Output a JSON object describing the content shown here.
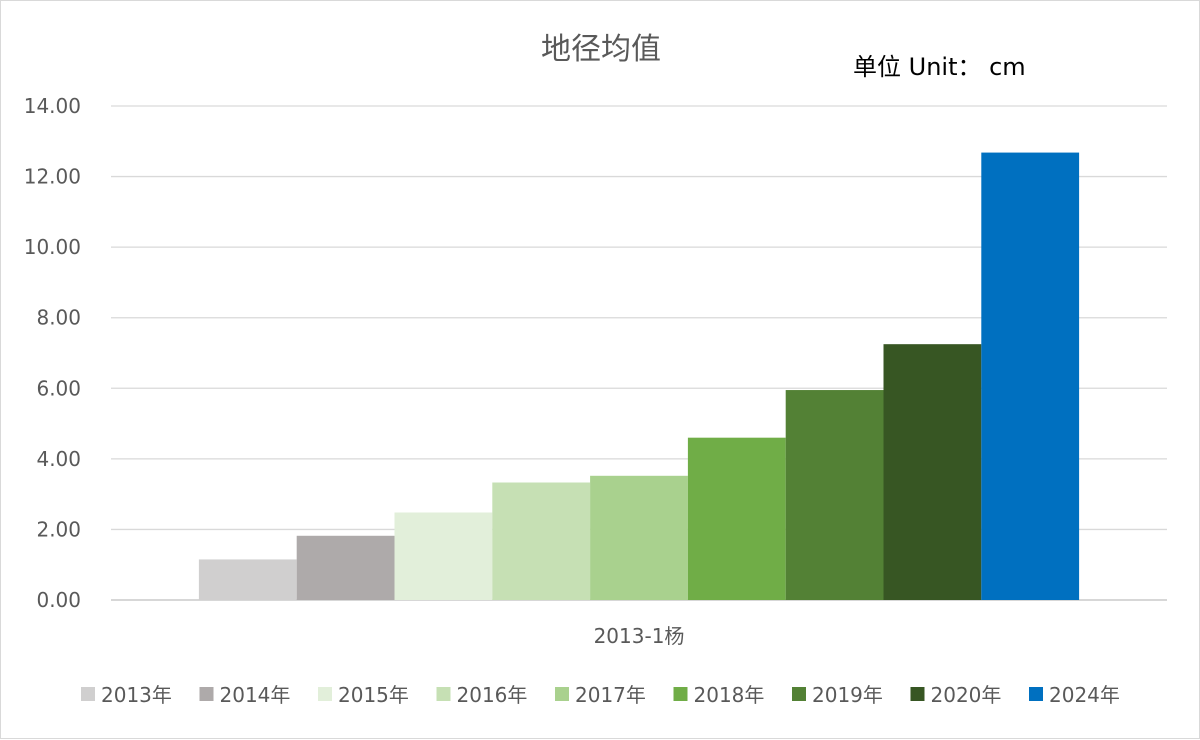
{
  "chart_data": {
    "type": "bar",
    "title": "地径均值",
    "unit_label": "单位 Unit： cm",
    "categories": [
      "2013-1杨"
    ],
    "ylim": [
      0,
      14
    ],
    "y_ticks": [
      "0.00",
      "2.00",
      "4.00",
      "6.00",
      "8.00",
      "10.00",
      "12.00",
      "14.00"
    ],
    "grid": true,
    "legend_position": "bottom",
    "series": [
      {
        "name": "2013年",
        "values": [
          1.15
        ],
        "color": "#d0cfcf"
      },
      {
        "name": "2014年",
        "values": [
          1.82
        ],
        "color": "#aeaaaa"
      },
      {
        "name": "2015年",
        "values": [
          2.48
        ],
        "color": "#e2efda"
      },
      {
        "name": "2016年",
        "values": [
          3.33
        ],
        "color": "#c6e0b4"
      },
      {
        "name": "2017年",
        "values": [
          3.52
        ],
        "color": "#a9d18e"
      },
      {
        "name": "2018年",
        "values": [
          4.6
        ],
        "color": "#70ad47"
      },
      {
        "name": "2019年",
        "values": [
          5.95
        ],
        "color": "#538135"
      },
      {
        "name": "2020年",
        "values": [
          7.25
        ],
        "color": "#375623"
      },
      {
        "name": "2024年",
        "values": [
          12.68
        ],
        "color": "#0070c0"
      }
    ]
  }
}
